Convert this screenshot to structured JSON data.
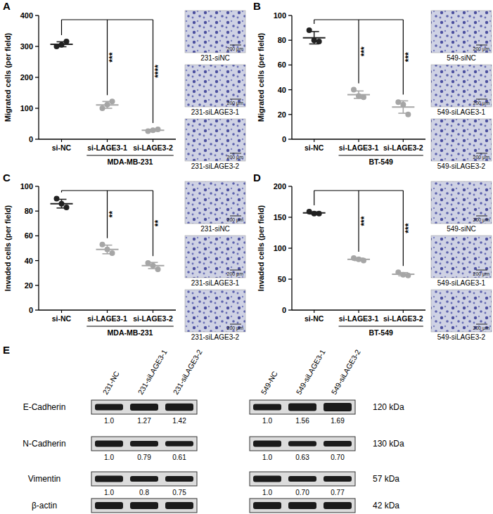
{
  "chart_data": [
    {
      "type": "dot",
      "label": "A",
      "y_label": "Migrated cells (per field)",
      "categories": [
        "si-NC",
        "si-LAGE3-1",
        "si-LAGE3-2"
      ],
      "group_label": "MDA-MB-231",
      "colors": [
        "#222222",
        "#a6a6a6",
        "#a6a6a6"
      ],
      "points": [
        [
          300,
          305,
          316
        ],
        [
          100,
          112,
          122
        ],
        [
          26,
          29,
          32
        ]
      ],
      "means": [
        307,
        111,
        29
      ],
      "errors": [
        8,
        11,
        3
      ],
      "significance": [
        null,
        "***",
        "****"
      ],
      "ylim": [
        0,
        400
      ],
      "yticks": [
        0,
        100,
        200,
        300,
        400
      ],
      "images": [
        {
          "label": "231-siNC",
          "scale": "200 μm"
        },
        {
          "label": "231-siLAGE3-1",
          "scale": "200 μm"
        },
        {
          "label": "231-siLAGE3-2",
          "scale": "200 μm"
        }
      ]
    },
    {
      "type": "dot",
      "label": "B",
      "y_label": "Migrated cells (per field)",
      "categories": [
        "si-NC",
        "si-LAGE3-1",
        "si-LAGE3-2"
      ],
      "group_label": "BT-549",
      "colors": [
        "#222222",
        "#a6a6a6",
        "#a6a6a6"
      ],
      "points": [
        [
          88,
          80,
          79
        ],
        [
          40,
          35,
          34
        ],
        [
          30,
          28,
          20
        ]
      ],
      "means": [
        82,
        36,
        26
      ],
      "errors": [
        5,
        3,
        5
      ],
      "significance": [
        null,
        "***",
        "***"
      ],
      "ylim": [
        0,
        100
      ],
      "yticks": [
        0,
        20,
        40,
        60,
        80,
        100
      ],
      "images": [
        {
          "label": "549-siNC",
          "scale": "200 μm"
        },
        {
          "label": "549-siLAGE3-1",
          "scale": "200 μm"
        },
        {
          "label": "549-siLAGE3-2",
          "scale": "200 μm"
        }
      ]
    },
    {
      "type": "dot",
      "label": "C",
      "y_label": "Invaded cells (per field)",
      "categories": [
        "si-NC",
        "si-LAGE3-1",
        "si-LAGE3-2"
      ],
      "group_label": "MDA-MB-231",
      "colors": [
        "#222222",
        "#a6a6a6",
        "#a6a6a6"
      ],
      "points": [
        [
          90,
          86,
          83
        ],
        [
          53,
          49,
          46
        ],
        [
          38,
          36,
          33
        ]
      ],
      "means": [
        86,
        49,
        36
      ],
      "errors": [
        3.5,
        3.5,
        2.5
      ],
      "significance": [
        null,
        "**",
        "**"
      ],
      "ylim": [
        0,
        100
      ],
      "yticks": [
        0,
        20,
        40,
        60,
        80,
        100
      ],
      "images": [
        {
          "label": "231-siNC",
          "scale": "200 μm"
        },
        {
          "label": "231-siLAGE3-1",
          "scale": "200 μm"
        },
        {
          "label": "231-siLAGE3-2",
          "scale": "200 μm"
        }
      ]
    },
    {
      "type": "dot",
      "label": "D",
      "y_label": "Invaded cells (per field)",
      "categories": [
        "si-NC",
        "si-LAGE3-1",
        "si-LAGE3-2"
      ],
      "group_label": "BT-549",
      "colors": [
        "#222222",
        "#a6a6a6",
        "#a6a6a6"
      ],
      "points": [
        [
          159,
          156,
          156
        ],
        [
          84,
          82,
          80
        ],
        [
          61,
          57,
          56
        ]
      ],
      "means": [
        157,
        82,
        58
      ],
      "errors": [
        1.7,
        2,
        2.6
      ],
      "significance": [
        null,
        "***",
        "***"
      ],
      "ylim": [
        0,
        200
      ],
      "yticks": [
        0,
        50,
        100,
        150,
        200
      ],
      "images": [
        {
          "label": "549-siNC",
          "scale": "200 μm"
        },
        {
          "label": "549-siLAGE3-1",
          "scale": "200 μm"
        },
        {
          "label": "549-siLAGE3-2",
          "scale": "200 μm"
        }
      ]
    }
  ],
  "western_blot": {
    "label": "E",
    "proteins": [
      "E-Cadherin",
      "N-Cadherin",
      "Vimentin",
      "β-actin"
    ],
    "sizes": [
      "120 kDa",
      "130 kDa",
      "57 kDa",
      "42 kDa"
    ],
    "blots": [
      {
        "lanes": [
          "231-NC",
          "231-siLAGE3-1",
          "231-siLAGE3-2"
        ],
        "values": [
          [
            {
              "value": 1,
              "label": "1.0"
            },
            1.27,
            1.42
          ],
          [
            {
              "value": 1,
              "label": "1.0"
            },
            0.79,
            0.61
          ],
          [
            {
              "value": 1,
              "label": "1.0"
            },
            0.8,
            0.75
          ]
        ]
      },
      {
        "lanes": [
          "549-NC",
          "549-siLAGE3-1",
          "549-siLAGE3-2"
        ],
        "values": [
          [
            {
              "value": 1,
              "label": "1.0"
            },
            1.56,
            1.69
          ],
          [
            {
              "value": 1,
              "label": "1.0"
            },
            0.63,
            {
              "value": 0.7,
              "label": "0.70"
            }
          ],
          [
            {
              "value": 1,
              "label": "1.0"
            },
            {
              "value": 0.7,
              "label": "0.70"
            },
            0.77
          ]
        ]
      }
    ]
  }
}
